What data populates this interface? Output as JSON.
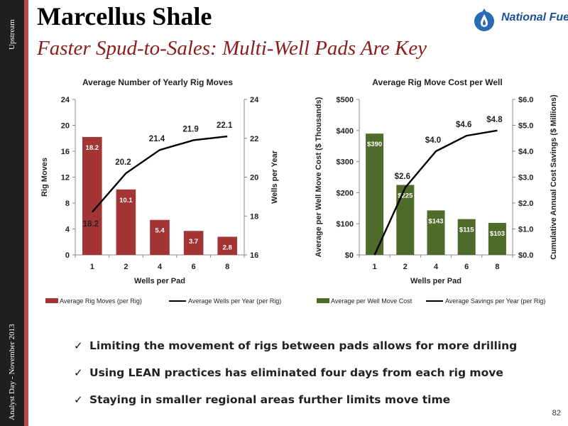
{
  "sidebar": {
    "top_text": "Upstream",
    "bottom_text": "Analyst Day - November 2013"
  },
  "header": {
    "title": "Marcellus Shale",
    "subtitle": "Faster Spud-to-Sales: Multi-Well Pads Are Key"
  },
  "logo": {
    "text": "National Fuel",
    "colors": {
      "drop": "#2a6bb5",
      "flame": "#ffffff",
      "text": "#1e4f9c"
    }
  },
  "chart_data": [
    {
      "type": "bar",
      "title": "Average Number of Yearly Rig Moves",
      "xlabel": "Wells per Pad",
      "ylabel": "Rig Moves",
      "y2label": "Wells per Year",
      "categories": [
        "1",
        "2",
        "4",
        "6",
        "8"
      ],
      "ylim": [
        0,
        24
      ],
      "yticks": [
        0,
        4,
        8,
        12,
        16,
        20,
        24
      ],
      "y2lim": [
        16,
        24
      ],
      "y2ticks": [
        16,
        18,
        20,
        22,
        24
      ],
      "bar_color": "#a33634",
      "series": [
        {
          "name": "Average Rig Moves (per Rig)",
          "type": "bar",
          "axis": "left",
          "values": [
            18.2,
            10.1,
            5.4,
            3.7,
            2.8
          ],
          "labels": [
            "18.2",
            "10.1",
            "5.4",
            "3.7",
            "2.8"
          ]
        },
        {
          "name": "Average Wells per Year (per Rig)",
          "type": "line",
          "axis": "right",
          "values": [
            18.2,
            20.2,
            21.4,
            21.9,
            22.1
          ],
          "labels": [
            "18.2",
            "20.2",
            "21.4",
            "21.9",
            "22.1"
          ]
        }
      ],
      "grid": false,
      "legend": "bottom"
    },
    {
      "type": "bar",
      "title": "Average Rig Move Cost per Well",
      "xlabel": "Wells per Pad",
      "ylabel": "Average per Well Move Cost ($ Thousands)",
      "y2label": "Cumulative Annual Cost Savings ($ Millions)",
      "categories": [
        "1",
        "2",
        "4",
        "6",
        "8"
      ],
      "ylim": [
        0,
        500
      ],
      "yticks": [
        "$0",
        "$100",
        "$200",
        "$300",
        "$400",
        "$500"
      ],
      "y2lim": [
        0,
        6
      ],
      "y2ticks": [
        "$0.0",
        "$1.0",
        "$2.0",
        "$3.0",
        "$4.0",
        "$5.0",
        "$6.0"
      ],
      "bar_color": "#4e6b2a",
      "series": [
        {
          "name": "Average per Well Move Cost",
          "type": "bar",
          "axis": "left",
          "values": [
            390,
            225,
            143,
            115,
            103
          ],
          "labels": [
            "$390",
            "$225",
            "$143",
            "$115",
            "$103"
          ]
        },
        {
          "name": "Average Savings per Year (per Rig)",
          "type": "line",
          "axis": "right",
          "values": [
            0,
            2.6,
            4.0,
            4.6,
            4.8
          ],
          "labels": [
            "",
            "$2.6",
            "$4.0",
            "$4.6",
            "$4.8"
          ]
        }
      ],
      "grid": false,
      "legend": "bottom"
    }
  ],
  "bullets": [
    "Limiting the movement of rigs between pads allows for more drilling",
    "Using LEAN practices has eliminated four days from each rig move",
    "Staying in smaller regional areas further limits move time"
  ],
  "bullet_icon": "check-icon",
  "page_number": "82"
}
